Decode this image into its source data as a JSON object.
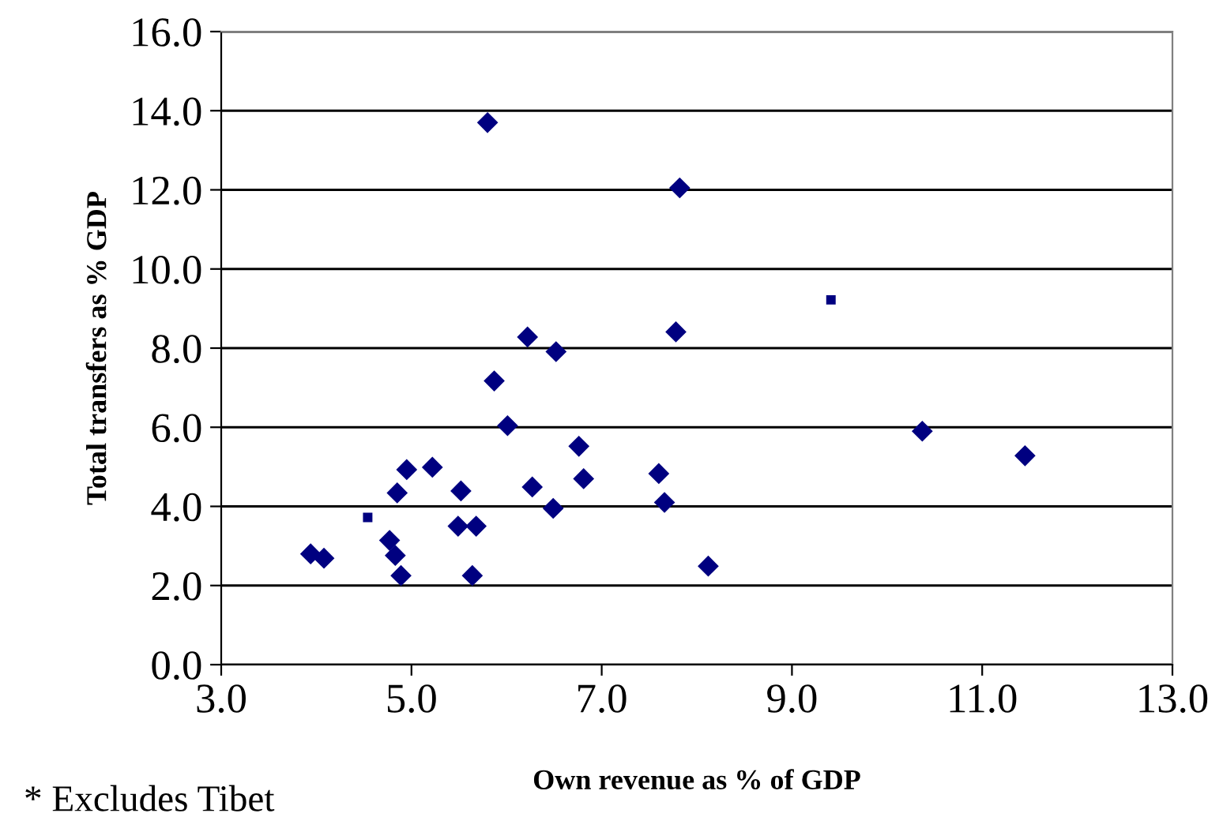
{
  "chart_data": {
    "type": "scatter",
    "xlabel": "Own revenue as % of GDP",
    "ylabel": "Total transfers as % GDP",
    "annotations": [
      "* Excludes Tibet"
    ],
    "series": [
      {
        "color": "#000080",
        "marker": "diamond",
        "x": [
          5.8,
          7.82,
          6.22,
          6.52,
          5.87,
          7.78,
          10.37,
          11.45,
          7.6,
          7.66,
          8.12,
          6.01,
          6.76,
          4.95,
          5.22,
          4.85,
          5.52,
          6.27,
          6.81,
          6.49,
          5.49,
          5.68,
          4.77,
          3.94,
          4.08,
          4.83,
          4.89,
          5.64
        ],
        "values": [
          13.7,
          12.05,
          8.28,
          7.91,
          7.17,
          8.41,
          5.9,
          5.28,
          4.83,
          4.1,
          2.49,
          6.04,
          5.52,
          4.93,
          4.99,
          4.34,
          4.39,
          4.49,
          4.7,
          3.95,
          3.5,
          3.5,
          3.14,
          2.8,
          2.69,
          2.76,
          2.25,
          2.25
        ]
      },
      {
        "color": "#000080",
        "marker": "square",
        "x": [
          4.54,
          9.41
        ],
        "values": [
          3.72,
          9.22
        ]
      }
    ],
    "xlim": [
      3,
      13
    ],
    "xticks": [
      {
        "value": 3,
        "label": "3.0"
      },
      {
        "value": 5,
        "label": "5.0"
      },
      {
        "value": 7,
        "label": "7.0"
      },
      {
        "value": 9,
        "label": "9.0"
      },
      {
        "value": 11,
        "label": "11.0"
      },
      {
        "value": 13,
        "label": "13.0"
      }
    ],
    "ylim": [
      0,
      16
    ],
    "yticks": [
      {
        "value": 0,
        "label": "0.0"
      },
      {
        "value": 2,
        "label": "2.0"
      },
      {
        "value": 4,
        "label": "4.0"
      },
      {
        "value": 6,
        "label": "6.0"
      },
      {
        "value": 8,
        "label": "8.0"
      },
      {
        "value": 10,
        "label": "10.0"
      },
      {
        "value": 12,
        "label": "12.0"
      },
      {
        "value": 14,
        "label": "14.0"
      },
      {
        "value": 16,
        "label": "16.0"
      }
    ],
    "grid": "y",
    "legend": false
  }
}
